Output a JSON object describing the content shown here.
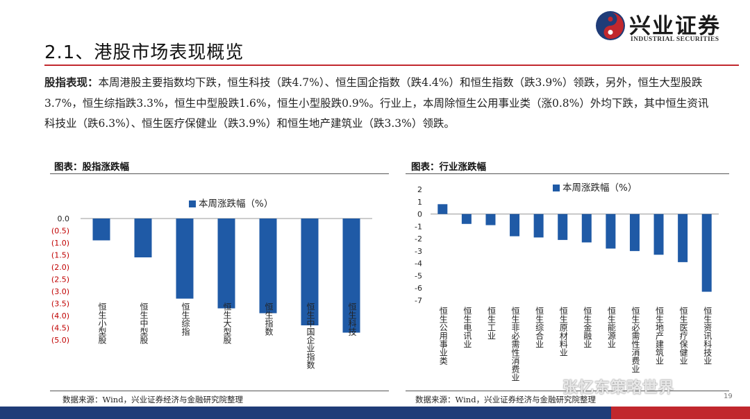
{
  "header": {
    "logo_cn": "兴业证券",
    "logo_en": "INDUSTRIAL SECURITIES",
    "title": "2.1、港股市场表现概览"
  },
  "summary": {
    "label": "股指表现：",
    "text": "本周港股主要指数均下跌，恒生科技（跌4.7%）、恒生国企指数（跌4.4%）和恒生指数（跌3.9%）领跌，另外，恒生大型股跌3.7%，恒生综指跌3.3%，恒生中型股跌1.6%，恒生小型股跌0.9%。行业上，本周除恒生公用事业类（涨0.8%）外均下跌，其中恒生资讯科技业（跌6.3%）、恒生医疗保健业（跌3.9%）和恒生地产建筑业（跌3.3%）领跌。"
  },
  "charts_meta": [
    {
      "title": "图表：股指涨跌幅",
      "source": "数据来源：Wind，兴业证券经济与金融研究院整理"
    },
    {
      "title": "图表：行业涨跌幅",
      "source": "数据来源：Wind，兴业证券经济与金融研究院整理"
    }
  ],
  "chart_data": [
    {
      "type": "bar",
      "legend": "本周涨跌幅（%）",
      "legend_position": "top-center",
      "categories": [
        "恒生小型股",
        "恒生中型股",
        "恒生综指",
        "恒生大型股",
        "恒生指数",
        "恒生中国企业指数",
        "恒生科技"
      ],
      "values": [
        -0.9,
        -1.6,
        -3.3,
        -3.7,
        -3.9,
        -4.4,
        -4.7
      ],
      "yticks": [
        "0.0",
        "(0.5)",
        "(1.0)",
        "(1.5)",
        "(2.0)",
        "(2.5)",
        "(3.0)",
        "(3.5)",
        "(4.0)",
        "(4.5)",
        "(5.0)"
      ],
      "ylim": [
        -5,
        0
      ],
      "grid": false,
      "bar_color": "#1f5aa6",
      "negative_tick_color": "#c00000"
    },
    {
      "type": "bar",
      "legend": "本周涨跌幅（%）",
      "legend_position": "top-center",
      "categories": [
        "恒生公用事业类",
        "恒生电讯业",
        "恒生工业",
        "恒生非必需性消费业",
        "恒生综合业",
        "恒生原材料业",
        "恒生金融业",
        "恒生能源业",
        "恒生必需性消费业",
        "恒生地产建筑业",
        "恒生医疗保健业",
        "恒生资讯科技业"
      ],
      "values": [
        0.8,
        -0.8,
        -0.9,
        -1.8,
        -1.9,
        -2.1,
        -2.3,
        -2.8,
        -3.0,
        -3.3,
        -3.9,
        -6.3
      ],
      "yticks": [
        "2",
        "1",
        "0",
        "-1",
        "-2",
        "-3",
        "-4",
        "-5",
        "-6",
        "-7"
      ],
      "ylim": [
        -7,
        2
      ],
      "grid": false,
      "bar_color": "#1f5aa6"
    }
  ],
  "watermark": "张忆东策略世界",
  "page_number": "19"
}
